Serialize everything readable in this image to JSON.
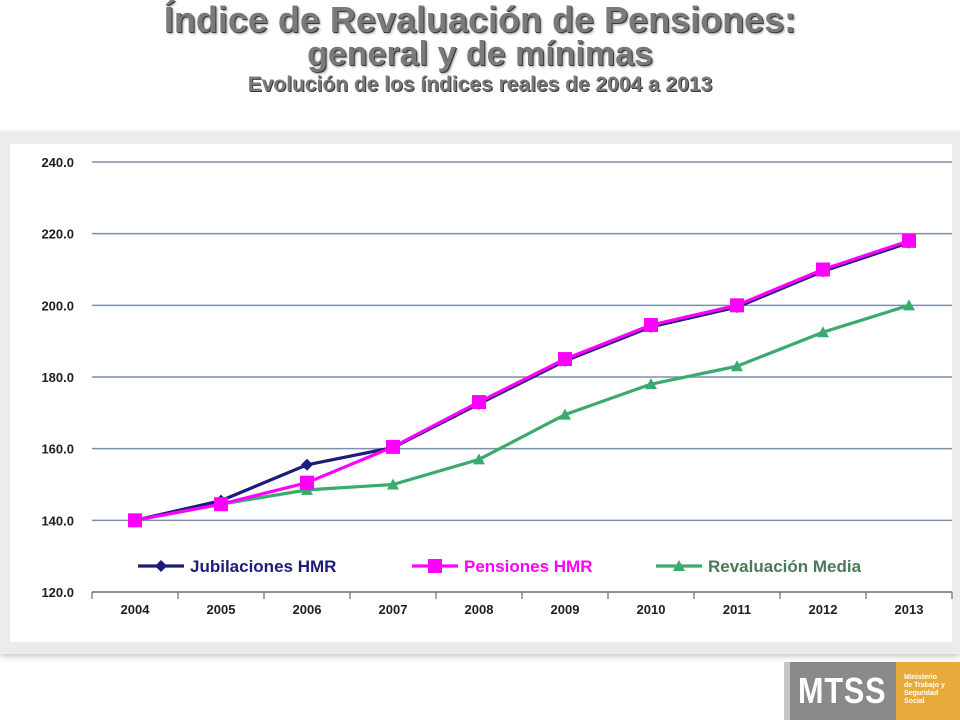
{
  "title": {
    "line1": "Índice de Revaluación de Pensiones:",
    "line2": "general y de mínimas",
    "subtitle": "Evolución de los índices reales de 2004 a 2013"
  },
  "chart_data": {
    "type": "line",
    "categories": [
      "2004",
      "2005",
      "2006",
      "2007",
      "2008",
      "2009",
      "2010",
      "2011",
      "2012",
      "2013"
    ],
    "ylim": [
      120,
      240
    ],
    "yticks": [
      "240.0",
      "220.0",
      "200.0",
      "180.0",
      "160.0",
      "140.0",
      "120.0"
    ],
    "grid": true,
    "legend_position": "bottom-inside",
    "series": [
      {
        "name": "Jubilaciones HMR",
        "color": "#1c1c7a",
        "marker": "diamond",
        "values": [
          140,
          145.5,
          155.5,
          160.3,
          172.5,
          184.5,
          194,
          199.5,
          209.5,
          217.5
        ]
      },
      {
        "name": "Pensiones HMR",
        "color": "#ff00ff",
        "marker": "square",
        "values": [
          140,
          144.5,
          150.5,
          160.5,
          173,
          185,
          194.5,
          200,
          210,
          218
        ]
      },
      {
        "name": "Revaluación Media",
        "color": "#3aaa6e",
        "marker": "triangle",
        "values": [
          140,
          144.5,
          148.5,
          150,
          157,
          169.5,
          178,
          183,
          192.5,
          200
        ]
      }
    ]
  },
  "logo": {
    "text": "MTSS",
    "subtext": [
      "Ministerio",
      "de Trabajo y",
      "Seguridad",
      "Social"
    ]
  }
}
